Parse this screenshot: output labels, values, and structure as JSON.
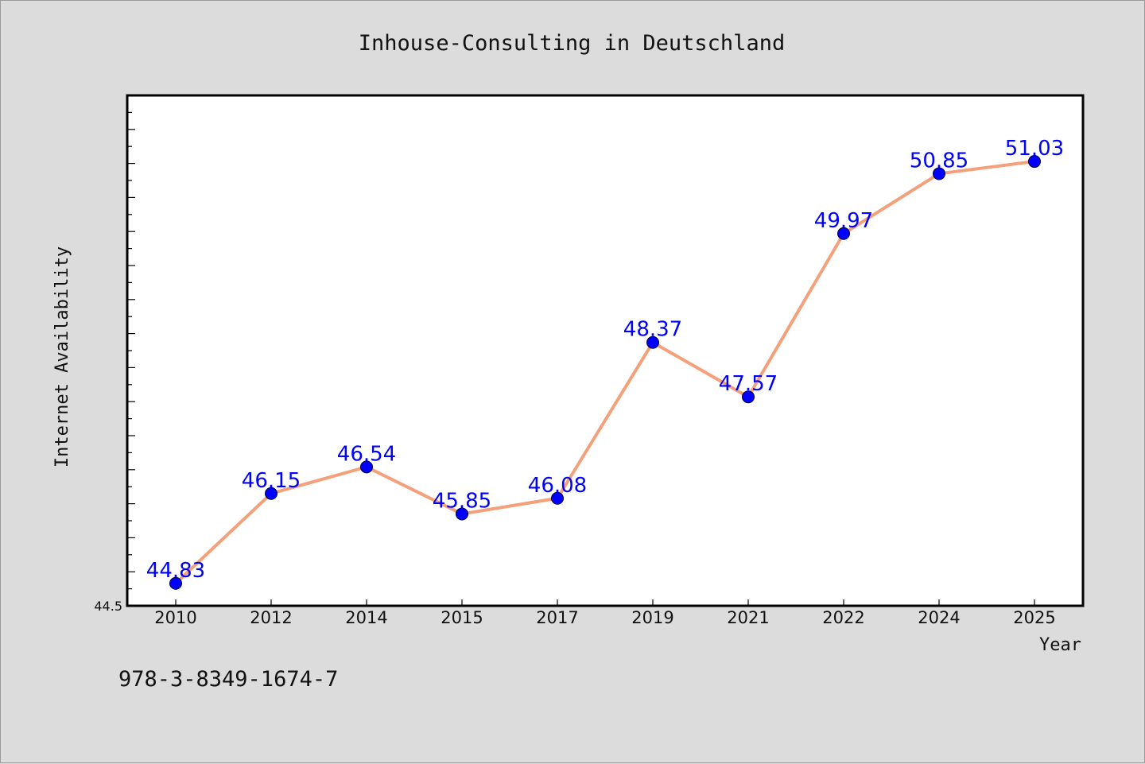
{
  "chart_data": {
    "type": "line",
    "title": "Inhouse-Consulting in Deutschland",
    "xlabel": "Year",
    "ylabel": "Internet Availability",
    "categories": [
      "2010",
      "2012",
      "2014",
      "2015",
      "2017",
      "2019",
      "2021",
      "2022",
      "2024",
      "2025"
    ],
    "series": [
      {
        "values": [
          44.83,
          46.15,
          46.54,
          45.85,
          46.08,
          48.37,
          47.57,
          49.97,
          50.85,
          51.03
        ]
      }
    ],
    "data_labels": [
      "44.83",
      "46.15",
      "46.54",
      "45.85",
      "46.08",
      "48.37",
      "47.57",
      "49.97",
      "50.85",
      "51.03"
    ],
    "ylim": [
      44.5,
      52.0
    ],
    "ytick_labels": [
      "44.5"
    ],
    "grid": false,
    "colors": {
      "line": "#f4a07a",
      "marker": "#0000ff",
      "data_label": "#0000ff",
      "plot_background": "#ffffff",
      "figure_background": "#dcdcdc"
    }
  },
  "footer": {
    "text": "978-3-8349-1674-7"
  }
}
